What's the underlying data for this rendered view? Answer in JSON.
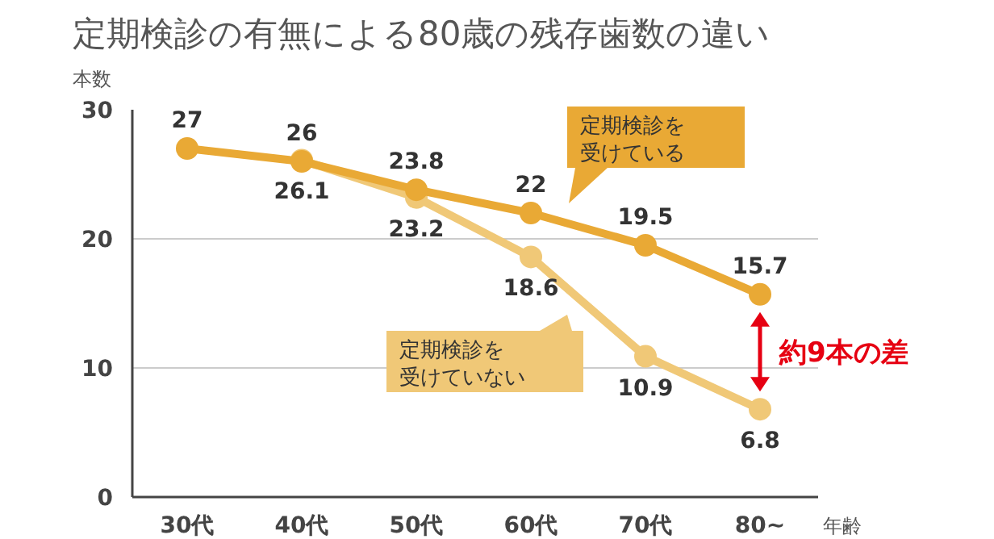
{
  "chart_data": {
    "type": "line",
    "title": "定期検診の有無による80歳の残存歯数の違い",
    "ylabel": "本数",
    "xlabel": "年齢",
    "categories": [
      "30代",
      "40代",
      "50代",
      "60代",
      "70代",
      "80~"
    ],
    "ylim": [
      0,
      30
    ],
    "yticks": [
      0,
      10,
      20,
      30
    ],
    "grid": "y",
    "marker": "circle",
    "line_style": "solid",
    "series": [
      {
        "name": "定期検診を受けている",
        "color": "#e9a935",
        "values": [
          27,
          26,
          23.8,
          22,
          19.5,
          15.7
        ],
        "value_labels": [
          "27",
          "26",
          "23.8",
          "22",
          "19.5",
          "15.7"
        ]
      },
      {
        "name": "定期検診を受けていない",
        "color": "#f0c877",
        "values": [
          null,
          26.1,
          23.2,
          18.6,
          10.9,
          6.8
        ],
        "value_labels": [
          null,
          "26.1",
          "23.2",
          "18.6",
          "10.9",
          "6.8"
        ]
      }
    ],
    "annotations": [
      "約9本の差"
    ]
  }
}
